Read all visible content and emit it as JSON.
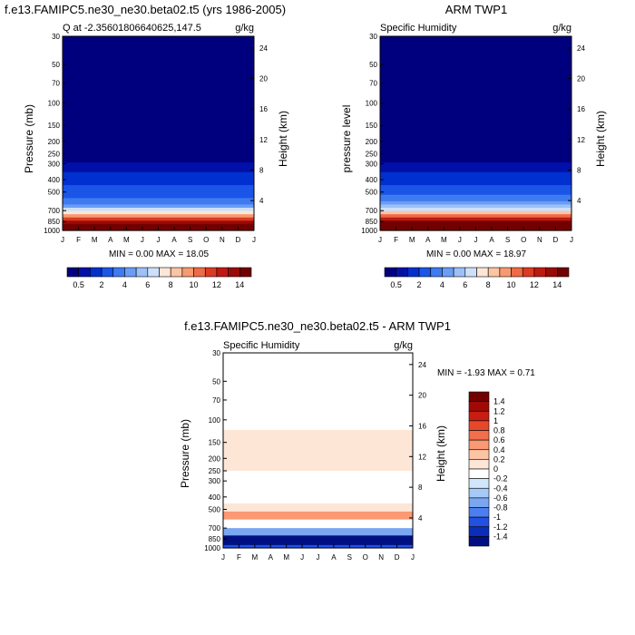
{
  "chart_data": [
    {
      "type": "heatmap",
      "title": "f.e13.FAMIPC5.ne30_ne30.beta02.t5 (yrs 1986-2005)",
      "subtitle_left": "Q at -2.35601806640625,147.5",
      "units": "g/kg",
      "xlabel": "",
      "ylabel": "Pressure (mb)",
      "ylabel_right": "Height (km)",
      "x": [
        "J",
        "F",
        "M",
        "A",
        "M",
        "J",
        "J",
        "A",
        "S",
        "O",
        "N",
        "D",
        "J"
      ],
      "y_pressure_ticks": [
        "30",
        "50",
        "70",
        "100",
        "150",
        "200",
        "250",
        "300",
        "400",
        "500",
        "700",
        "850",
        "1000"
      ],
      "y_height_ticks": [
        "24",
        "20",
        "16",
        "12",
        "8",
        "4"
      ],
      "min_max": "MIN =   0.00 MAX =  18.05",
      "colorbar_labels": [
        "0.5",
        "2",
        "4",
        "6",
        "8",
        "10",
        "12",
        "14"
      ],
      "profile": {
        "pressure_mb": [
          30,
          200,
          280,
          300,
          350,
          400,
          500,
          600,
          700,
          800,
          850,
          900,
          1000
        ],
        "q_gkg": [
          0.02,
          0.05,
          0.2,
          0.5,
          1.0,
          1.5,
          2.6,
          3.5,
          6.5,
          10.5,
          13,
          15,
          17.5
        ]
      }
    },
    {
      "type": "heatmap",
      "title": "ARM TWP1",
      "subtitle_left": "Specific Humidity",
      "units": "g/kg",
      "xlabel": "",
      "ylabel": "pressure level",
      "ylabel_right": "Height (km)",
      "x": [
        "J",
        "F",
        "M",
        "A",
        "M",
        "J",
        "J",
        "A",
        "S",
        "O",
        "N",
        "D",
        "J"
      ],
      "y_pressure_ticks": [
        "30",
        "50",
        "70",
        "100",
        "150",
        "200",
        "250",
        "300",
        "400",
        "500",
        "700",
        "850",
        "1000"
      ],
      "y_height_ticks": [
        "24",
        "20",
        "16",
        "12",
        "8",
        "4"
      ],
      "min_max": "MIN =   0.00 MAX =  18.97",
      "colorbar_labels": [
        "0.5",
        "2",
        "4",
        "6",
        "8",
        "10",
        "12",
        "14"
      ],
      "profile": {
        "pressure_mb": [
          30,
          200,
          280,
          300,
          350,
          400,
          500,
          600,
          700,
          800,
          850,
          900,
          1000
        ],
        "q_gkg": [
          0.02,
          0.05,
          0.2,
          0.5,
          1.0,
          1.6,
          2.8,
          4.0,
          7.5,
          11.5,
          14,
          16,
          18.5
        ]
      }
    },
    {
      "type": "heatmap",
      "title": "f.e13.FAMIPC5.ne30_ne30.beta02.t5 - ARM TWP1",
      "subtitle_left": "Specific Humidity",
      "units": "g/kg",
      "xlabel": "",
      "ylabel": "Pressure (mb)",
      "ylabel_right": "Height (km)",
      "x": [
        "J",
        "F",
        "M",
        "A",
        "M",
        "J",
        "J",
        "A",
        "S",
        "O",
        "N",
        "D",
        "J"
      ],
      "y_pressure_ticks": [
        "30",
        "50",
        "70",
        "100",
        "150",
        "200",
        "250",
        "300",
        "400",
        "500",
        "700",
        "850",
        "1000"
      ],
      "y_height_ticks": [
        "24",
        "20",
        "16",
        "12",
        "8",
        "4"
      ],
      "min_max": "MIN =  -1.93 MAX =    0.71",
      "colorbar_labels": [
        "1.4",
        "1.2",
        "1",
        "0.8",
        "0.6",
        "0.4",
        "0.2",
        "0",
        "-0.2",
        "-0.4",
        "-0.6",
        "-0.8",
        "-1",
        "-1.2",
        "-1.4"
      ],
      "bands": [
        {
          "p_top": 30,
          "p_bottom": 120,
          "value": -0.1
        },
        {
          "p_top": 120,
          "p_bottom": 250,
          "value": 0.1
        },
        {
          "p_top": 250,
          "p_bottom": 450,
          "value": -0.1
        },
        {
          "p_top": 450,
          "p_bottom": 520,
          "value": 0.1
        },
        {
          "p_top": 520,
          "p_bottom": 600,
          "value": 0.5
        },
        {
          "p_top": 600,
          "p_bottom": 700,
          "value": -0.1
        },
        {
          "p_top": 700,
          "p_bottom": 800,
          "value": -0.7
        },
        {
          "p_top": 800,
          "p_bottom": 950,
          "value": -1.5
        },
        {
          "p_top": 950,
          "p_bottom": 1000,
          "value": -1.1
        }
      ]
    }
  ],
  "colors": {
    "seq_palette": [
      "#00007f",
      "#0010a8",
      "#0030d0",
      "#1a55e8",
      "#3f7bf0",
      "#6a9df5",
      "#9dc0f8",
      "#cde0fb",
      "#fde6d6",
      "#fcc4a2",
      "#f79a70",
      "#ee6b46",
      "#dc3b22",
      "#bf1a10",
      "#9a0a06",
      "#730000"
    ],
    "div_palette": [
      "#730000",
      "#a00a06",
      "#c81e12",
      "#e8472c",
      "#f26f4c",
      "#fa9974",
      "#fcc3a4",
      "#fde6d6",
      "#ffffff",
      "#d2e6fb",
      "#a6c9f6",
      "#7aa6f2",
      "#4d7ef0",
      "#2350e0",
      "#0a2eb8",
      "#001083"
    ]
  }
}
